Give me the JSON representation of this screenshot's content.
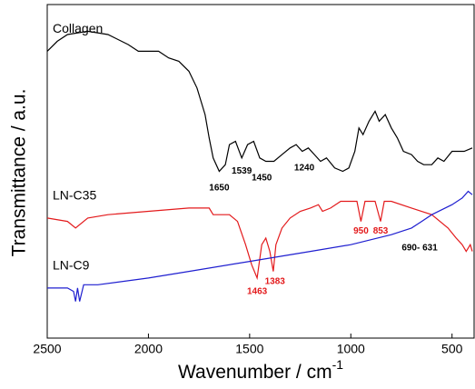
{
  "chart_data": {
    "type": "line",
    "x_label": "Wavenumber / cm",
    "x_label_sup": "-1",
    "y_label": "Transmittance / a.u.",
    "xlim": [
      2500,
      400
    ],
    "xticks": [
      2500,
      2000,
      1500,
      1000,
      500
    ],
    "ylim": [
      0,
      100
    ],
    "series": [
      {
        "name": "Collagen",
        "color": "#000000",
        "x": [
          2500,
          2450,
          2400,
          2300,
          2200,
          2100,
          2050,
          2000,
          1950,
          1900,
          1850,
          1800,
          1760,
          1720,
          1700,
          1680,
          1650,
          1620,
          1600,
          1570,
          1539,
          1510,
          1480,
          1450,
          1420,
          1380,
          1340,
          1300,
          1270,
          1240,
          1210,
          1180,
          1150,
          1120,
          1080,
          1040,
          1010,
          980,
          960,
          940,
          910,
          880,
          860,
          830,
          800,
          770,
          740,
          700,
          670,
          640,
          600,
          570,
          540,
          500,
          470,
          440,
          400
        ],
        "values": [
          86,
          89,
          91,
          92,
          91,
          88,
          86,
          86,
          86,
          84,
          83,
          80,
          75,
          67,
          60,
          54,
          50,
          52,
          58,
          59,
          54,
          58,
          59,
          54,
          53,
          53,
          55,
          57,
          58,
          56,
          57,
          55,
          53,
          54,
          51,
          50,
          51,
          56,
          63,
          61,
          65,
          68,
          65,
          67,
          63,
          60,
          56,
          55,
          53,
          52,
          52,
          54,
          53,
          56,
          56,
          56,
          57
        ]
      },
      {
        "name": "LN-C35",
        "color": "#e31a1c",
        "x": [
          2500,
          2400,
          2360,
          2300,
          2200,
          2000,
          1800,
          1750,
          1700,
          1680,
          1650,
          1600,
          1560,
          1520,
          1490,
          1463,
          1440,
          1420,
          1400,
          1383,
          1370,
          1340,
          1300,
          1250,
          1200,
          1160,
          1140,
          1100,
          1050,
          1000,
          970,
          950,
          930,
          880,
          853,
          835,
          800,
          700,
          600,
          520,
          480,
          450,
          430,
          410,
          400
        ],
        "values": [
          36,
          35,
          33,
          36,
          37,
          38,
          39,
          39,
          39,
          37,
          37,
          37,
          35,
          28,
          22,
          18,
          28,
          30,
          26,
          20,
          28,
          33,
          36,
          38,
          39,
          40,
          38,
          39,
          41,
          41,
          41,
          35,
          41,
          41,
          35,
          41,
          41,
          39,
          37,
          33,
          30,
          28,
          26,
          28,
          26
        ]
      },
      {
        "name": "LN-C9",
        "color": "#1f1fd0",
        "x": [
          2500,
          2450,
          2400,
          2370,
          2360,
          2350,
          2340,
          2320,
          2250,
          2000,
          1800,
          1500,
          1200,
          1000,
          800,
          700,
          650,
          600,
          500,
          450,
          420,
          400
        ],
        "values": [
          15,
          15,
          15,
          14,
          11,
          15,
          11,
          16,
          16,
          18,
          20,
          23,
          26,
          28,
          31,
          33,
          35,
          37,
          40,
          42,
          44,
          43
        ]
      }
    ],
    "annotations": [
      {
        "text": "1650",
        "x": 1650,
        "y": 45,
        "color": "#000000"
      },
      {
        "text": "1539",
        "x": 1539,
        "y": 50,
        "color": "#000000"
      },
      {
        "text": "1450",
        "x": 1440,
        "y": 48,
        "color": "#000000"
      },
      {
        "text": "1240",
        "x": 1230,
        "y": 51,
        "color": "#000000"
      },
      {
        "text": "1463",
        "x": 1463,
        "y": 14,
        "color": "#e31a1c"
      },
      {
        "text": "1383",
        "x": 1375,
        "y": 17,
        "color": "#e31a1c"
      },
      {
        "text": "950",
        "x": 950,
        "y": 32,
        "color": "#e31a1c"
      },
      {
        "text": "853",
        "x": 853,
        "y": 32,
        "color": "#e31a1c"
      },
      {
        "text": "690- 631",
        "x": 660,
        "y": 27,
        "color": "#000000"
      }
    ]
  }
}
